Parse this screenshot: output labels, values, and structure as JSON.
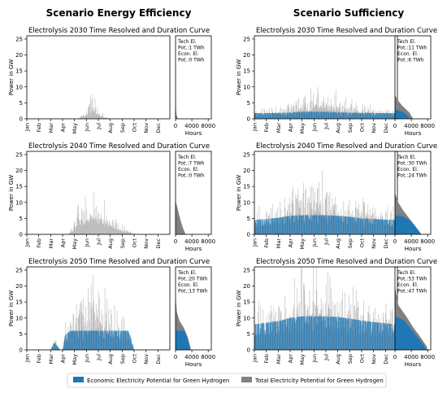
{
  "column_titles": [
    "Scenario Energy Efficiency",
    "Scenario Sufficiency"
  ],
  "legend": {
    "economic_label": "Economic Electricity Potential for Green Hydrogen",
    "total_label": "Total Electricity Potential for Green Hydrogen"
  },
  "colors": {
    "economic": "#1f77b4",
    "total": "#808080"
  },
  "chart_data": [
    {
      "type": "area",
      "scenario": "Scenario Energy Efficiency",
      "year": 2030,
      "title": "Electrolysis 2030 Time Resolved and Duration Curve",
      "ylabel": "Power in GW",
      "xlabel_duration": "Hours",
      "months": [
        "Jan",
        "Feb",
        "Mar",
        "Apr",
        "May",
        "Jun",
        "Jul",
        "Aug",
        "Sep",
        "Oct",
        "Nov",
        "Dec"
      ],
      "ylim": [
        0,
        26
      ],
      "yticks": [
        0,
        5,
        10,
        15,
        20,
        25
      ],
      "duration_xlim": [
        0,
        8760
      ],
      "duration_xticks": [
        0,
        4000,
        8000
      ],
      "annotation": [
        "Tech El.",
        "Pot.:1 TWh",
        "Econ. El.",
        "Pot.:0 TWh"
      ],
      "total_profile": [
        [
          0,
          0
        ],
        [
          4.3,
          0
        ],
        [
          4.8,
          1.8
        ],
        [
          5.2,
          4.0
        ],
        [
          5.6,
          6.5
        ],
        [
          6.0,
          2.8
        ],
        [
          6.5,
          0.8
        ],
        [
          7.0,
          0
        ],
        [
          12,
          0
        ]
      ],
      "economic_profile": [
        [
          0,
          0
        ],
        [
          12,
          0
        ]
      ],
      "total_duration": [
        [
          0,
          6.5
        ],
        [
          80,
          3.0
        ],
        [
          250,
          1.0
        ],
        [
          600,
          0
        ],
        [
          8760,
          0
        ]
      ],
      "economic_duration": [
        [
          0,
          0
        ],
        [
          8760,
          0
        ]
      ]
    },
    {
      "type": "area",
      "scenario": "Scenario Sufficiency",
      "year": 2030,
      "title": "Electrolysis 2030 Time Resolved and Duration Curve",
      "ylabel": "Power in GW",
      "xlabel_duration": "Hours",
      "months": [
        "Jan",
        "Feb",
        "Mar",
        "Apr",
        "May",
        "Jun",
        "Jul",
        "Aug",
        "Sep",
        "Oct",
        "Nov",
        "Dec"
      ],
      "ylim": [
        0,
        26
      ],
      "yticks": [
        0,
        5,
        10,
        15,
        20,
        25
      ],
      "duration_xlim": [
        0,
        8760
      ],
      "duration_xticks": [
        0,
        4000,
        8000
      ],
      "annotation": [
        "Tech El.",
        "Pot.:11 TWh",
        "Econ. El.",
        "Pot.:6 TWh"
      ],
      "total_profile": [
        [
          0,
          2.2
        ],
        [
          1.5,
          2.8
        ],
        [
          2.5,
          3.5
        ],
        [
          3.5,
          5.0
        ],
        [
          4.5,
          7.0
        ],
        [
          5.5,
          9.0
        ],
        [
          6.5,
          7.5
        ],
        [
          7.5,
          5.0
        ],
        [
          8.5,
          4.0
        ],
        [
          10,
          3.0
        ],
        [
          12,
          2.5
        ]
      ],
      "economic_profile": [
        [
          0,
          1.8
        ],
        [
          1.5,
          1.8
        ],
        [
          3.0,
          1.9
        ],
        [
          4.0,
          2.2
        ],
        [
          5.0,
          2.2
        ],
        [
          6.0,
          2.2
        ],
        [
          7.0,
          2.0
        ],
        [
          8.0,
          1.9
        ],
        [
          10,
          1.8
        ],
        [
          12,
          1.8
        ]
      ],
      "total_duration": [
        [
          0,
          7.5
        ],
        [
          600,
          6.0
        ],
        [
          1500,
          4.5
        ],
        [
          2500,
          3.2
        ],
        [
          3500,
          2.0
        ],
        [
          4200,
          0.5
        ],
        [
          4500,
          0
        ],
        [
          8760,
          0
        ]
      ],
      "economic_duration": [
        [
          0,
          3.0
        ],
        [
          700,
          2.6
        ],
        [
          2000,
          2.2
        ],
        [
          3000,
          1.0
        ],
        [
          3600,
          0
        ],
        [
          8760,
          0
        ]
      ]
    },
    {
      "type": "area",
      "scenario": "Scenario Energy Efficiency",
      "year": 2040,
      "title": "Electrolysis 2040 Time Resolved and Duration Curve",
      "ylabel": "Power in GW",
      "xlabel_duration": "Hours",
      "months": [
        "Jan",
        "Feb",
        "Mar",
        "Apr",
        "May",
        "Jun",
        "Jul",
        "Aug",
        "Sep",
        "Oct",
        "Nov",
        "Dec"
      ],
      "ylim": [
        0,
        26
      ],
      "yticks": [
        0,
        5,
        10,
        15,
        20,
        25
      ],
      "duration_xlim": [
        0,
        8760
      ],
      "duration_xticks": [
        0,
        4000,
        8000
      ],
      "annotation": [
        "Tech El.",
        "Pot.:7 TWh",
        "Econ. El.",
        "Pot.:0 TWh"
      ],
      "total_profile": [
        [
          0,
          0
        ],
        [
          3.5,
          0
        ],
        [
          3.8,
          2.0
        ],
        [
          4.2,
          7.0
        ],
        [
          4.8,
          9.0
        ],
        [
          5.5,
          10.5
        ],
        [
          6.2,
          9.5
        ],
        [
          6.8,
          7.0
        ],
        [
          7.5,
          4.5
        ],
        [
          8.2,
          2.0
        ],
        [
          8.8,
          0.5
        ],
        [
          9.2,
          0
        ],
        [
          12,
          0
        ]
      ],
      "economic_profile": [
        [
          0,
          0
        ],
        [
          12,
          0
        ]
      ],
      "total_duration": [
        [
          0,
          10.5
        ],
        [
          300,
          9.0
        ],
        [
          800,
          6.5
        ],
        [
          1300,
          4.0
        ],
        [
          1800,
          2.0
        ],
        [
          2300,
          0.5
        ],
        [
          2500,
          0
        ],
        [
          8760,
          0
        ]
      ],
      "economic_duration": [
        [
          0,
          0
        ],
        [
          8760,
          0
        ]
      ]
    },
    {
      "type": "area",
      "scenario": "Scenario Sufficiency",
      "year": 2040,
      "title": "Electrolysis 2040 Time Resolved and Duration Curve",
      "ylabel": "Power in GW",
      "xlabel_duration": "Hours",
      "months": [
        "Jan",
        "Feb",
        "Mar",
        "Apr",
        "May",
        "Jun",
        "Jul",
        "Aug",
        "Sep",
        "Oct",
        "Nov",
        "Dec"
      ],
      "ylim": [
        0,
        26
      ],
      "yticks": [
        0,
        5,
        10,
        15,
        20,
        25
      ],
      "duration_xlim": [
        0,
        8760
      ],
      "duration_xticks": [
        0,
        4000,
        8000
      ],
      "annotation": [
        "Tech El.",
        "Pot.:30 TWh",
        "Econ. El.",
        "Pot.:24 TWh"
      ],
      "total_profile": [
        [
          0,
          6.0
        ],
        [
          1,
          7.0
        ],
        [
          2,
          8.0
        ],
        [
          3,
          10.5
        ],
        [
          4,
          13.0
        ],
        [
          5,
          15.0
        ],
        [
          6,
          14.0
        ],
        [
          7,
          12.0
        ],
        [
          8,
          10.5
        ],
        [
          9,
          9.0
        ],
        [
          10,
          8.0
        ],
        [
          11,
          7.5
        ],
        [
          12,
          7.0
        ]
      ],
      "economic_profile": [
        [
          0,
          4.5
        ],
        [
          1,
          4.8
        ],
        [
          2,
          5.2
        ],
        [
          3,
          5.8
        ],
        [
          4,
          6.0
        ],
        [
          5,
          6.0
        ],
        [
          6,
          6.0
        ],
        [
          7,
          5.8
        ],
        [
          8,
          5.5
        ],
        [
          9,
          5.0
        ],
        [
          10,
          4.8
        ],
        [
          11,
          4.6
        ],
        [
          12,
          4.5
        ]
      ],
      "total_duration": [
        [
          0,
          13.0
        ],
        [
          800,
          10.0
        ],
        [
          2000,
          7.5
        ],
        [
          3500,
          5.0
        ],
        [
          5000,
          2.5
        ],
        [
          6200,
          0.5
        ],
        [
          6500,
          0
        ],
        [
          8760,
          0
        ]
      ],
      "economic_duration": [
        [
          0,
          6.0
        ],
        [
          2000,
          5.6
        ],
        [
          3500,
          4.5
        ],
        [
          5000,
          2.5
        ],
        [
          6200,
          0.3
        ],
        [
          6400,
          0
        ],
        [
          8760,
          0
        ]
      ]
    },
    {
      "type": "area",
      "scenario": "Scenario Energy Efficiency",
      "year": 2050,
      "title": "Electrolysis 2050 Time Resolved and Duration Curve",
      "ylabel": "Power in GW",
      "xlabel_duration": "Hours",
      "months": [
        "Jan",
        "Feb",
        "Mar",
        "Apr",
        "May",
        "Jun",
        "Jul",
        "Aug",
        "Sep",
        "Oct",
        "Nov",
        "Dec"
      ],
      "ylim": [
        0,
        26
      ],
      "yticks": [
        0,
        5,
        10,
        15,
        20,
        25
      ],
      "duration_xlim": [
        0,
        8760
      ],
      "duration_xticks": [
        0,
        4000,
        8000
      ],
      "annotation": [
        "Tech El.",
        "Pot.:20 TWh",
        "Econ. El.",
        "Pot.:13 TWh"
      ],
      "total_profile": [
        [
          0,
          0
        ],
        [
          2.0,
          0
        ],
        [
          2.3,
          3.0
        ],
        [
          2.8,
          0
        ],
        [
          3.0,
          0
        ],
        [
          3.2,
          6.0
        ],
        [
          3.8,
          10.0
        ],
        [
          4.5,
          13.0
        ],
        [
          5.2,
          16.0
        ],
        [
          5.8,
          17.5
        ],
        [
          6.5,
          14.0
        ],
        [
          7.2,
          11.0
        ],
        [
          7.8,
          9.0
        ],
        [
          8.3,
          7.0
        ],
        [
          8.7,
          4.0
        ],
        [
          9.0,
          0
        ],
        [
          12,
          0
        ]
      ],
      "economic_profile": [
        [
          0,
          0
        ],
        [
          2.0,
          0
        ],
        [
          2.3,
          2.5
        ],
        [
          2.8,
          0
        ],
        [
          3.0,
          0
        ],
        [
          3.2,
          4.5
        ],
        [
          3.6,
          6.0
        ],
        [
          8.5,
          6.0
        ],
        [
          8.8,
          3.0
        ],
        [
          9.0,
          0
        ],
        [
          12,
          0
        ]
      ],
      "total_duration": [
        [
          0,
          17.0
        ],
        [
          300,
          12.0
        ],
        [
          1000,
          9.0
        ],
        [
          2000,
          7.0
        ],
        [
          3000,
          4.0
        ],
        [
          3600,
          1.0
        ],
        [
          3800,
          0
        ],
        [
          8760,
          0
        ]
      ],
      "economic_duration": [
        [
          0,
          6.0
        ],
        [
          2200,
          6.0
        ],
        [
          2800,
          4.0
        ],
        [
          3300,
          1.5
        ],
        [
          3600,
          0
        ],
        [
          8760,
          0
        ]
      ]
    },
    {
      "type": "area",
      "scenario": "Scenario Sufficiency",
      "year": 2050,
      "title": "Electrolysis 2050 Time Resolved and Duration Curve",
      "ylabel": "Power in GW",
      "xlabel_duration": "Hours",
      "months": [
        "Jan",
        "Feb",
        "Mar",
        "Apr",
        "May",
        "Jun",
        "Jul",
        "Aug",
        "Sep",
        "Oct",
        "Nov",
        "Dec"
      ],
      "ylim": [
        0,
        26
      ],
      "yticks": [
        0,
        5,
        10,
        15,
        20,
        25
      ],
      "duration_xlim": [
        0,
        8760
      ],
      "duration_xticks": [
        0,
        4000,
        8000
      ],
      "annotation": [
        "Tech El.",
        "Pot.:53 TWh",
        "Econ. El.",
        "Pot.:47 TWh"
      ],
      "total_profile": [
        [
          0,
          11.0
        ],
        [
          1,
          12.5
        ],
        [
          2,
          14.0
        ],
        [
          3,
          16.5
        ],
        [
          4,
          19.0
        ],
        [
          5,
          20.5
        ],
        [
          6,
          19.0
        ],
        [
          7,
          16.5
        ],
        [
          8,
          14.5
        ],
        [
          9,
          13.0
        ],
        [
          10,
          12.0
        ],
        [
          11,
          11.5
        ],
        [
          12,
          11.0
        ]
      ],
      "economic_profile": [
        [
          0,
          8.0
        ],
        [
          1,
          8.5
        ],
        [
          2,
          9.0
        ],
        [
          3,
          10.0
        ],
        [
          4,
          10.5
        ],
        [
          5,
          10.5
        ],
        [
          6,
          10.5
        ],
        [
          7,
          10.3
        ],
        [
          8,
          9.8
        ],
        [
          9,
          9.2
        ],
        [
          10,
          8.7
        ],
        [
          11,
          8.3
        ],
        [
          12,
          8.0
        ]
      ],
      "total_duration": [
        [
          0,
          20.0
        ],
        [
          800,
          14.0
        ],
        [
          2500,
          11.0
        ],
        [
          4500,
          7.0
        ],
        [
          6500,
          3.5
        ],
        [
          7800,
          1.0
        ],
        [
          8000,
          0
        ],
        [
          8760,
          0
        ]
      ],
      "economic_duration": [
        [
          0,
          10.5
        ],
        [
          2000,
          9.5
        ],
        [
          4000,
          6.5
        ],
        [
          5800,
          3.5
        ],
        [
          7300,
          1.0
        ],
        [
          7600,
          0
        ],
        [
          8760,
          0
        ]
      ]
    }
  ]
}
